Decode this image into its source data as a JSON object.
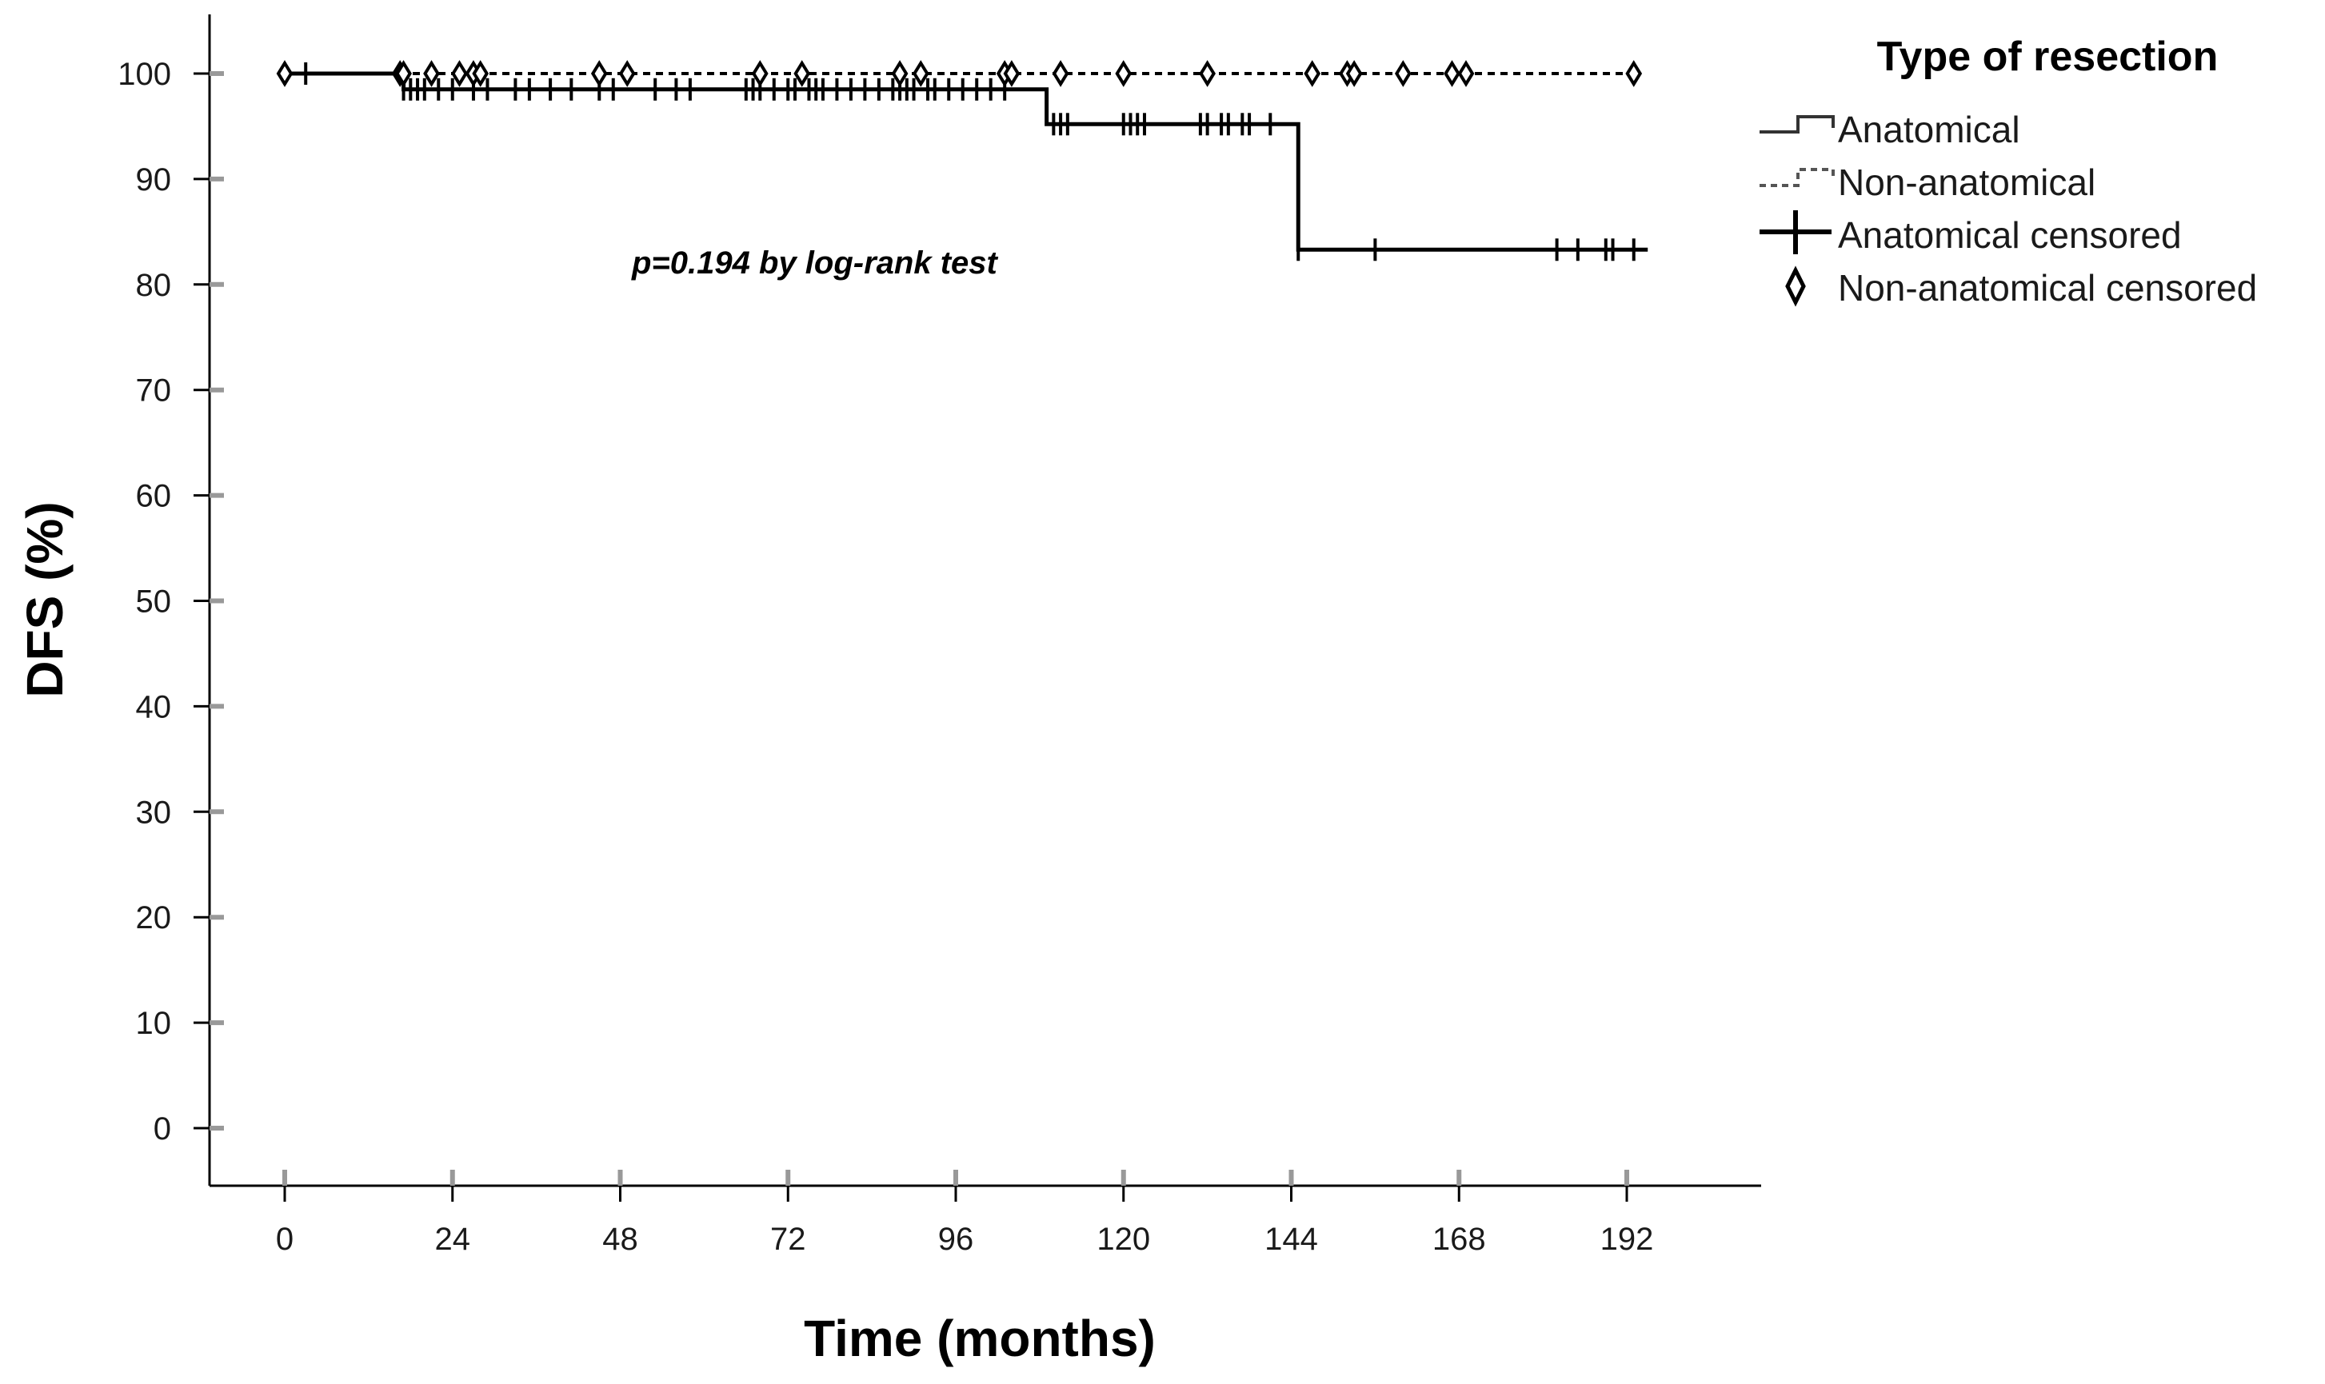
{
  "chart_data": {
    "type": "line",
    "subtype": "kaplan-meier",
    "title": "",
    "xlabel": "Time (months)",
    "ylabel": "DFS (%)",
    "xlim": [
      -10,
      206
    ],
    "ylim": [
      -5,
      106
    ],
    "xticks": [
      0,
      24,
      48,
      72,
      96,
      120,
      144,
      168,
      192
    ],
    "yticks": [
      0,
      10,
      20,
      30,
      40,
      50,
      60,
      70,
      80,
      90,
      100
    ],
    "grid": false,
    "annotation": "p=0.194 by log-rank test",
    "legend": {
      "title": "Type of resection",
      "position": "right",
      "entries": [
        "Anatomical",
        "Non-anatomical",
        "Anatomical censored",
        "Non-anatomical censored"
      ]
    },
    "series": [
      {
        "name": "Anatomical",
        "style": "solid",
        "color": "#000000",
        "steps": [
          {
            "x": 0,
            "y": 100
          },
          {
            "x": 17,
            "y": 98.5
          },
          {
            "x": 109,
            "y": 95.2
          },
          {
            "x": 145,
            "y": 83.3
          },
          {
            "x": 195,
            "y": 83.3
          }
        ],
        "censored_marker": "plus",
        "censored_x": [
          0,
          3,
          17,
          18,
          19,
          20,
          22,
          24,
          27,
          29,
          33,
          35,
          38,
          41,
          45,
          47,
          53,
          56,
          58,
          66,
          67,
          68,
          70,
          72,
          73,
          75,
          76,
          77,
          79,
          81,
          83,
          85,
          87,
          88,
          89,
          90,
          92,
          93,
          95,
          97,
          99,
          101,
          103,
          110,
          111,
          112,
          120,
          121,
          122,
          123,
          131,
          132,
          134,
          135,
          137,
          138,
          141,
          145,
          156,
          182,
          185,
          189,
          190,
          193
        ]
      },
      {
        "name": "Non-anatomical",
        "style": "dashed",
        "color": "#000000",
        "steps": [
          {
            "x": 0,
            "y": 100
          },
          {
            "x": 193,
            "y": 100
          }
        ],
        "censored_marker": "diamond",
        "censored_x": [
          0,
          16.5,
          17,
          21,
          25,
          27,
          28,
          45,
          49,
          68,
          74,
          88,
          91,
          103,
          104,
          111,
          120,
          132,
          147,
          152,
          153,
          160,
          167,
          169,
          193
        ]
      }
    ]
  }
}
